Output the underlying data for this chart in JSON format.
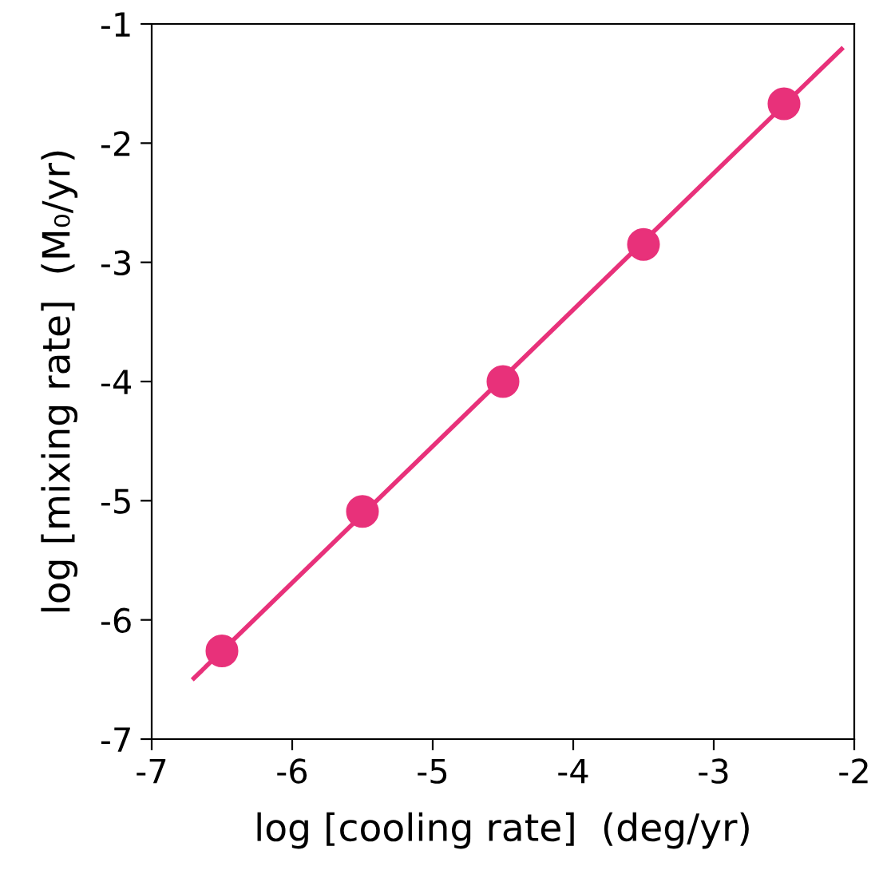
{
  "chart_data": {
    "type": "scatter",
    "xlabel": "log [cooling rate]  (deg/yr)",
    "ylabel": "log [mixing rate]  (M₀/yr)",
    "xlim": [
      -7,
      -2
    ],
    "ylim": [
      -7,
      -1
    ],
    "xticks": [
      {
        "value": -7,
        "label": "-7"
      },
      {
        "value": -6,
        "label": "-6"
      },
      {
        "value": -5,
        "label": "-5"
      },
      {
        "value": -4,
        "label": "-4"
      },
      {
        "value": -3,
        "label": "-3"
      },
      {
        "value": -2,
        "label": "-2"
      }
    ],
    "yticks": [
      {
        "value": -7,
        "label": "-7"
      },
      {
        "value": -6,
        "label": "-6"
      },
      {
        "value": -5,
        "label": "-5"
      },
      {
        "value": -4,
        "label": "-4"
      },
      {
        "value": -3,
        "label": "-3"
      },
      {
        "value": -2,
        "label": "-2"
      },
      {
        "value": -1,
        "label": "-1"
      }
    ],
    "grid": false,
    "legend": false,
    "series": [
      {
        "type": "line",
        "color": "#e8317a",
        "x": [
          -6.7,
          -2.09
        ],
        "values": [
          -6.49,
          -1.21
        ],
        "marker": "none",
        "line_style": "solid"
      },
      {
        "color": "#e8317a",
        "x": [
          -6.5,
          -5.5,
          -4.5,
          -3.5,
          -2.5
        ],
        "values": [
          -6.26,
          -5.09,
          -4.0,
          -2.85,
          -1.67
        ],
        "marker": "circle"
      }
    ]
  }
}
